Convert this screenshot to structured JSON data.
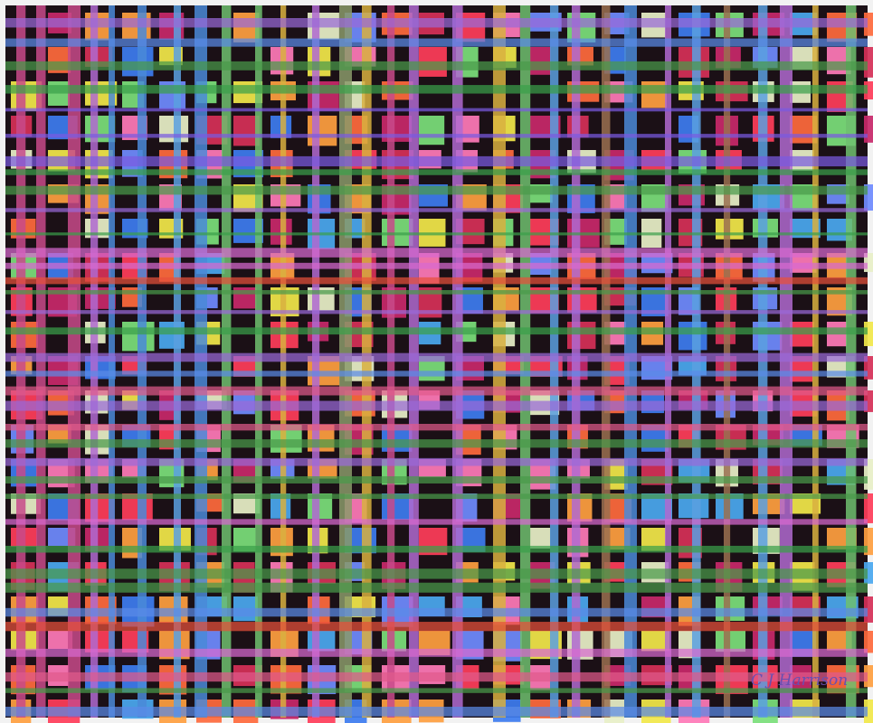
{
  "signature": "C J Harrison"
}
